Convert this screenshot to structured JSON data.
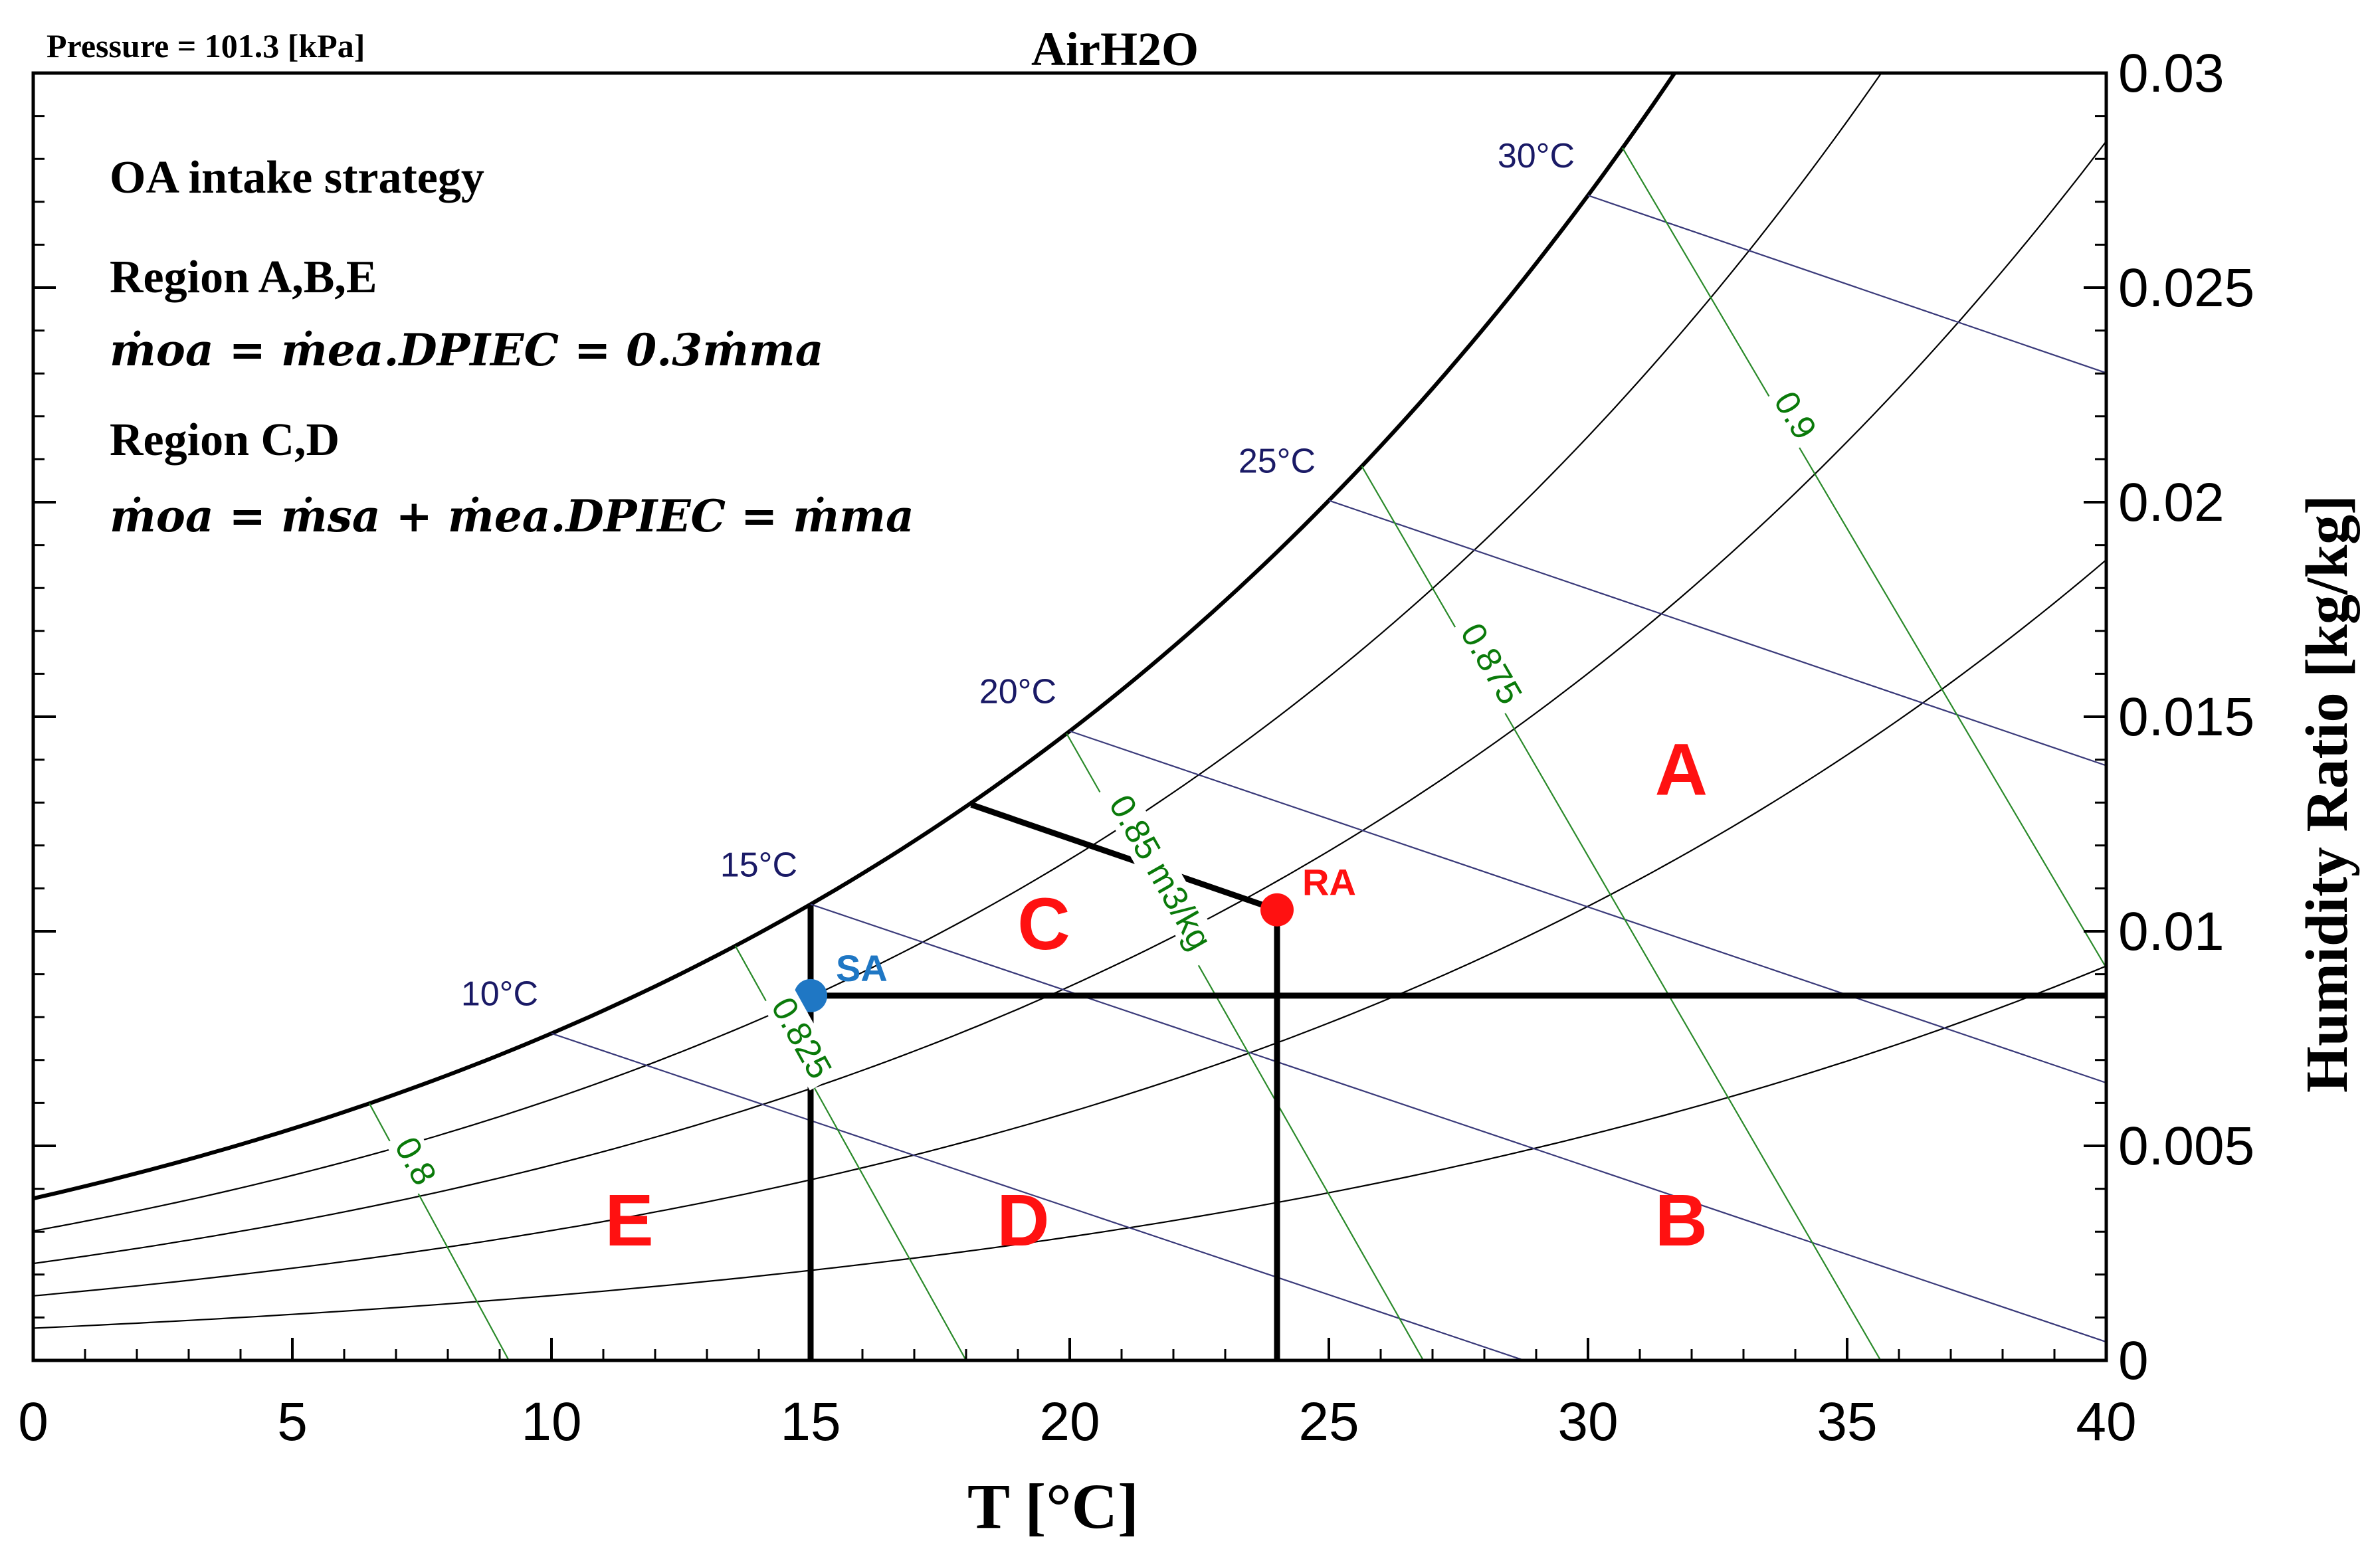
{
  "header": {
    "pressure_label": "Pressure = 101.3 [kPa]",
    "title": "AirH2O"
  },
  "annotation": {
    "heading": "OA intake strategy",
    "region_abe_label": "Region A,B,E",
    "region_abe_formula": "ṁoa = ṁea.DPIEC = 0.3ṁma",
    "region_cd_label": "Region C,D",
    "region_cd_formula": "ṁoa = ṁsa + ṁea.DPIEC = ṁma"
  },
  "chart_data": {
    "type": "scatter",
    "title": "AirH2O",
    "xlabel": "T [°C]",
    "ylabel": "Humidity Ratio [kg/kg]",
    "xlim": [
      0,
      40
    ],
    "ylim": [
      0,
      0.03
    ],
    "x_ticks": [
      0,
      5,
      10,
      15,
      20,
      25,
      30,
      35,
      40
    ],
    "x_tick_labels": [
      "0",
      "5",
      "10",
      "15",
      "20",
      "25",
      "30",
      "35",
      "40"
    ],
    "y_ticks": [
      0,
      0.005,
      0.01,
      0.015,
      0.02,
      0.025,
      0.03
    ],
    "y_tick_labels": [
      "0",
      "0.005",
      "0.01",
      "0.015",
      "0.02",
      "0.025",
      "0.03"
    ],
    "pressure_kpa": 101.3,
    "relative_humidity_curves": [
      0.2,
      0.4,
      0.6,
      0.8,
      1.0
    ],
    "wet_bulb_lines": [
      {
        "label": "10°C",
        "t_wb": 10
      },
      {
        "label": "15°C",
        "t_wb": 15
      },
      {
        "label": "20°C",
        "t_wb": 20
      },
      {
        "label": "25°C",
        "t_wb": 25
      },
      {
        "label": "30°C",
        "t_wb": 30
      }
    ],
    "specific_volume_lines": [
      {
        "label": "0.8",
        "v": 0.8
      },
      {
        "label": "0.825",
        "v": 0.825
      },
      {
        "label": "0.85 m3/kg",
        "v": 0.85
      },
      {
        "label": "0.875",
        "v": 0.875
      },
      {
        "label": "0.9",
        "v": 0.9
      }
    ],
    "points": [
      {
        "label": "SA",
        "t": 15,
        "w": 0.0085,
        "color": "#1f77c4"
      },
      {
        "label": "RA",
        "t": 24,
        "w": 0.0105,
        "color": "#ff1111"
      }
    ],
    "boundary_segments": [
      {
        "t1": 15,
        "w1": 0,
        "t2": 15,
        "w2": 0.0106
      },
      {
        "t1": 24,
        "w1": 0,
        "t2": 24,
        "w2": 0.0105
      },
      {
        "t1": 15,
        "w1": 0.0085,
        "t2": 40,
        "w2": 0.0085
      },
      {
        "t1": 18.1,
        "w1": 0.01295,
        "t2": 24,
        "w2": 0.0105
      }
    ],
    "regions": [
      {
        "label": "A",
        "t": 31.8,
        "w": 0.0138
      },
      {
        "label": "B",
        "t": 31.8,
        "w": 0.0033
      },
      {
        "label": "C",
        "t": 19.5,
        "w": 0.0102
      },
      {
        "label": "D",
        "t": 19.1,
        "w": 0.0033
      },
      {
        "label": "E",
        "t": 11.5,
        "w": 0.0033
      }
    ],
    "colors": {
      "saturation": "#000000",
      "rh_curves": "#000000",
      "wet_bulb": "#3a3a7a",
      "wet_bulb_label": "#1a1a66",
      "volume": "#2a8a2a",
      "volume_label": "#0a7a0a",
      "region_label": "#ff1111"
    }
  }
}
